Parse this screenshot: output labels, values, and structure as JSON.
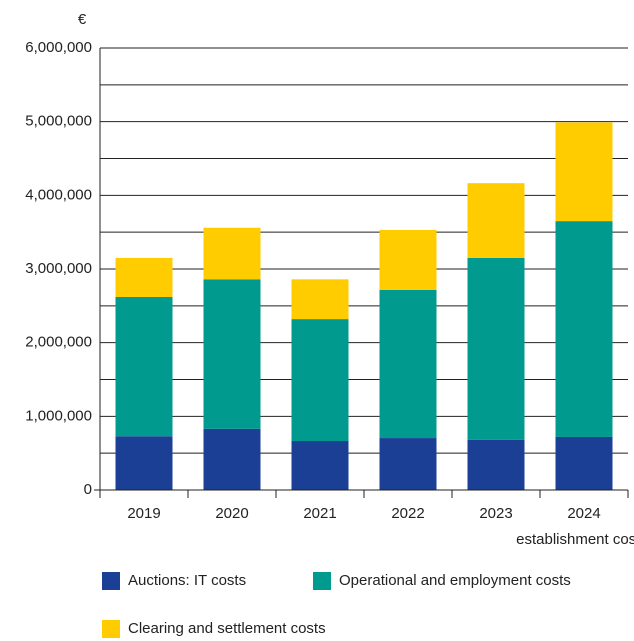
{
  "chart_data": {
    "type": "stacked_bar",
    "y_label": "€",
    "annotation": "establishment costs",
    "categories": [
      "2019",
      "2020",
      "2021",
      "2022",
      "2023",
      "2024"
    ],
    "series": [
      {
        "name": "Auctions: IT costs",
        "color": "#1b3f95",
        "values": [
          730000,
          830000,
          665000,
          705000,
          680000,
          720000
        ]
      },
      {
        "name": "Operational and employment costs",
        "color": "#009a8e",
        "values": [
          1890000,
          2030000,
          1655000,
          2010000,
          2470000,
          2930000
        ]
      },
      {
        "name": "Clearing and settlement costs",
        "color": "#ffcc00",
        "values": [
          530000,
          700000,
          540000,
          815000,
          1015000,
          1340000
        ]
      }
    ],
    "ylim": [
      0,
      6000000
    ],
    "yticks": [
      0,
      {
        "value": 1000000,
        "label": "1,000,000"
      },
      {
        "value": 2000000,
        "label": "2,000,000"
      },
      {
        "value": 3000000,
        "label": "3,000,000"
      },
      {
        "value": 4000000,
        "label": "4,000,000"
      },
      {
        "value": 5000000,
        "label": "5,000,000"
      },
      {
        "value": 6000000,
        "label": "6,000,000"
      }
    ],
    "minor_yticks": [
      500000,
      1500000,
      2500000,
      3500000,
      4500000,
      5500000
    ],
    "grid": true
  }
}
